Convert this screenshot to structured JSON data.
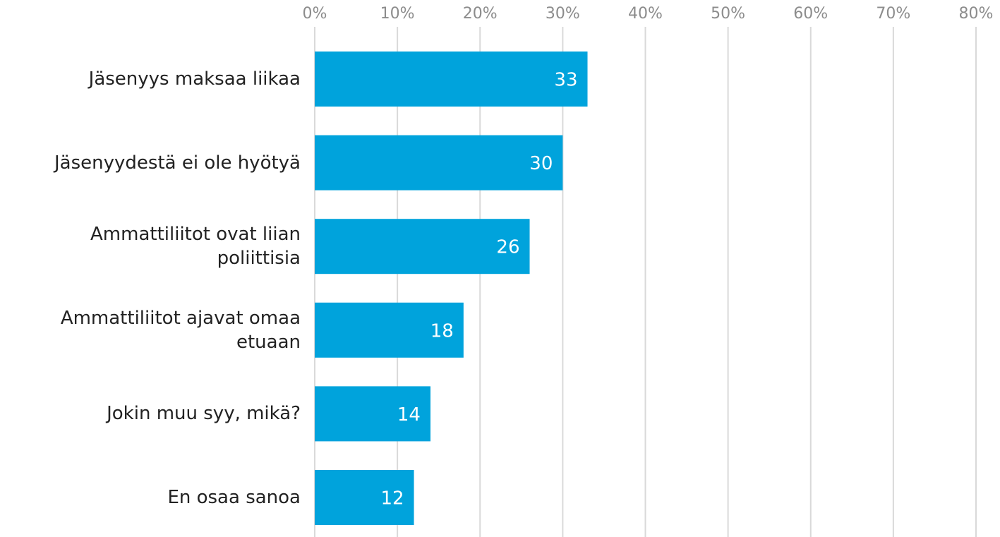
{
  "chart_data": {
    "type": "bar",
    "orientation": "horizontal",
    "categories": [
      "Jäsenyys maksaa liikaa",
      "Jäsenyydestä ei ole hyötyä",
      "Ammattiliitot ovat liian poliittisia",
      "Ammattiliitot ajavat omaa etuaan",
      "Jokin muu syy, mikä?",
      "En osaa sanoa"
    ],
    "values": [
      33,
      30,
      26,
      18,
      14,
      12
    ],
    "color": "#00a3dc",
    "xlim": [
      0,
      80
    ],
    "xticks": [
      {
        "value": 0,
        "label": "0%"
      },
      {
        "value": 10,
        "label": "10%"
      },
      {
        "value": 20,
        "label": "20%"
      },
      {
        "value": 30,
        "label": "30%"
      },
      {
        "value": 40,
        "label": "40%"
      },
      {
        "value": 50,
        "label": "50%"
      },
      {
        "value": 60,
        "label": "60%"
      },
      {
        "value": 70,
        "label": "70%"
      },
      {
        "value": 80,
        "label": "80%"
      }
    ],
    "grid": true
  }
}
